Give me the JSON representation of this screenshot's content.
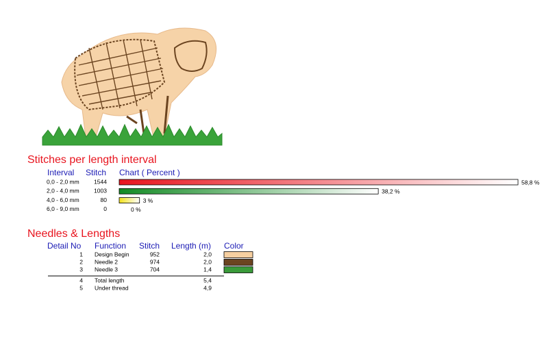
{
  "length_intervals": {
    "title": "Stitches per length interval",
    "headers": [
      "Interval",
      "Stitch",
      "Chart ( Percent )"
    ],
    "rows": [
      {
        "interval": "0,0 - 2,0 mm",
        "stitch": 1544,
        "percent": 58.8,
        "percent_label": "58,8 %",
        "color": "#e8141e"
      },
      {
        "interval": "2,0 - 4,0 mm",
        "stitch": 1003,
        "percent": 38.2,
        "percent_label": "38,2 %",
        "color": "#138a24"
      },
      {
        "interval": "4,0 - 6,0 mm",
        "stitch": 80,
        "percent": 3,
        "percent_label": "3 %",
        "color": "#f2e21c"
      },
      {
        "interval": "6,0 - 9,0 mm",
        "stitch": 0,
        "percent": 0,
        "percent_label": "0 %"
      }
    ]
  },
  "needles": {
    "title": "Needles & Lengths",
    "headers": [
      "Detail No",
      "Function",
      "Stitch",
      "Length (m)",
      "Color"
    ],
    "rows": [
      {
        "no": 1,
        "function": "Design Begin",
        "stitch": 952,
        "length": "2,0",
        "color": "#f6cfa0"
      },
      {
        "no": 2,
        "function": "Needle 2",
        "stitch": 974,
        "length": "2,0",
        "color": "#6b4420"
      },
      {
        "no": 3,
        "function": "Needle 3",
        "stitch": 704,
        "length": "1,4",
        "color": "#3a9a3a"
      }
    ],
    "totals": [
      {
        "no": 4,
        "function": "Total length",
        "length": "5,4"
      },
      {
        "no": 5,
        "function": "Under thread",
        "length": "4,9"
      }
    ]
  }
}
